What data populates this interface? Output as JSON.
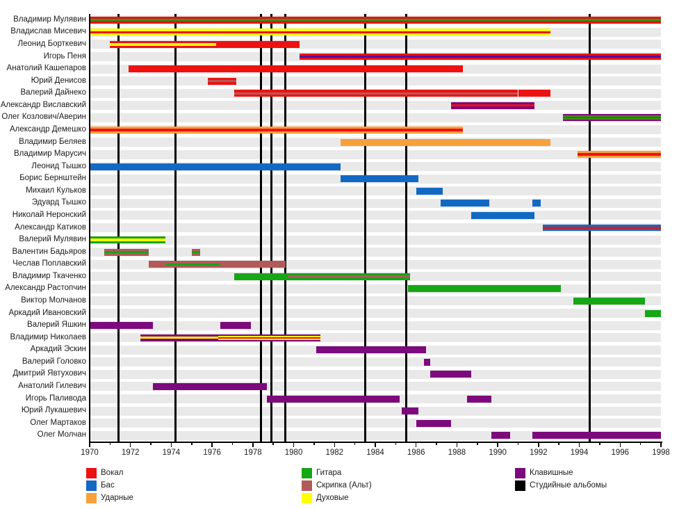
{
  "chart_data": {
    "type": "gantt-timeline",
    "description": "Band members timeline with instrument roles and studio album markers",
    "x_axis": {
      "min": 1970,
      "max": 1998,
      "major_tick_step": 2,
      "tick_labels": [
        "1970",
        "1972",
        "1974",
        "1976",
        "1978",
        "1980",
        "1982",
        "1984",
        "1986",
        "1988",
        "1990",
        "1992",
        "1994",
        "1996",
        "1998"
      ]
    },
    "album_years": [
      1971.4,
      1974.2,
      1978.4,
      1978.9,
      1979.6,
      1983.5,
      1985.5,
      1994.5
    ],
    "members": [
      {
        "name": "Владимир Мулявин",
        "segments": [
          {
            "start": 1970,
            "end": 1998,
            "layers": [
              "vocal",
              "guitar",
              "vocal"
            ]
          }
        ]
      },
      {
        "name": "Владислав Мисевич",
        "segments": [
          {
            "start": 1970,
            "end": 1992.6,
            "layers": [
              "wind",
              "vocal",
              "wind"
            ]
          }
        ]
      },
      {
        "name": "Леонид Борткевич",
        "segments": [
          {
            "start": 1971,
            "end": 1976.2,
            "layers": [
              "vocal",
              "wind",
              "vocal"
            ]
          },
          {
            "start": 1976.2,
            "end": 1980.3,
            "layers": [
              "vocal"
            ]
          }
        ]
      },
      {
        "name": "Игорь Пеня",
        "segments": [
          {
            "start": 1980.3,
            "end": 1998,
            "layers": [
              "vocal",
              "keys_dark",
              "vocal"
            ]
          }
        ]
      },
      {
        "name": "Анатолий Кашепаров",
        "segments": [
          {
            "start": 1971.9,
            "end": 1988.3,
            "layers": [
              "vocal"
            ]
          }
        ]
      },
      {
        "name": "Юрий Денисов",
        "segments": [
          {
            "start": 1975.8,
            "end": 1977.2,
            "layers": [
              "vocal",
              "strings",
              "vocal"
            ]
          }
        ]
      },
      {
        "name": "Валерий Дайнеко",
        "segments": [
          {
            "start": 1977.1,
            "end": 1991,
            "layers": [
              "vocal",
              "strings",
              "vocal"
            ]
          },
          {
            "start": 1991,
            "end": 1992.6,
            "layers": [
              "vocal"
            ]
          }
        ]
      },
      {
        "name": "Александр Виславский",
        "segments": [
          {
            "start": 1987.7,
            "end": 1991.8,
            "layers": [
              "keys",
              "vocal",
              "keys"
            ]
          }
        ]
      },
      {
        "name": "Олег Козлович/Аверин",
        "segments": [
          {
            "start": 1993.2,
            "end": 1998,
            "layers": [
              "keys",
              "guitar",
              "vocal",
              "guitar",
              "keys"
            ]
          }
        ]
      },
      {
        "name": "Александр Демешко",
        "segments": [
          {
            "start": 1970,
            "end": 1988.3,
            "layers": [
              "drums",
              "vocal",
              "drums"
            ]
          }
        ]
      },
      {
        "name": "Владимир Беляев",
        "segments": [
          {
            "start": 1982.3,
            "end": 1992.6,
            "layers": [
              "drums"
            ]
          }
        ]
      },
      {
        "name": "Владимир Марусич",
        "segments": [
          {
            "start": 1993.9,
            "end": 1998,
            "layers": [
              "drums",
              "vocal",
              "drums"
            ]
          }
        ]
      },
      {
        "name": "Леонид Тышко",
        "segments": [
          {
            "start": 1970,
            "end": 1982.3,
            "layers": [
              "bass"
            ]
          }
        ]
      },
      {
        "name": "Борис Бернштейн",
        "segments": [
          {
            "start": 1982.3,
            "end": 1986.1,
            "layers": [
              "bass"
            ]
          }
        ]
      },
      {
        "name": "Михаил Кульков",
        "segments": [
          {
            "start": 1986,
            "end": 1987.3,
            "layers": [
              "bass"
            ]
          }
        ]
      },
      {
        "name": "Эдуард Тышко",
        "segments": [
          {
            "start": 1987.2,
            "end": 1989.6,
            "layers": [
              "bass"
            ]
          },
          {
            "start": 1991.7,
            "end": 1992.1,
            "layers": [
              "bass"
            ]
          }
        ]
      },
      {
        "name": "Николай Неронский",
        "segments": [
          {
            "start": 1988.7,
            "end": 1991.8,
            "layers": [
              "bass"
            ]
          }
        ]
      },
      {
        "name": "Александр Катиков",
        "segments": [
          {
            "start": 1992.2,
            "end": 1998,
            "layers": [
              "bass",
              "vocal",
              "bass"
            ]
          }
        ]
      },
      {
        "name": "Валерий Мулявин",
        "segments": [
          {
            "start": 1970,
            "end": 1973.7,
            "layers": [
              "guitar",
              "wind",
              "guitar"
            ]
          }
        ]
      },
      {
        "name": "Валентин Бадьяров",
        "segments": [
          {
            "start": 1970.7,
            "end": 1972.9,
            "layers": [
              "strings",
              "guitar",
              "strings"
            ]
          },
          {
            "start": 1975,
            "end": 1975.4,
            "layers": [
              "strings",
              "guitar",
              "strings"
            ]
          }
        ]
      },
      {
        "name": "Чеслав Поплавский",
        "segments": [
          {
            "start": 1972.9,
            "end": 1973.75,
            "layers": [
              "strings"
            ]
          },
          {
            "start": 1973.75,
            "end": 1976.4,
            "layers": [
              "strings",
              "guitar",
              "strings"
            ]
          },
          {
            "start": 1976.4,
            "end": 1979.6,
            "layers": [
              "strings"
            ]
          }
        ]
      },
      {
        "name": "Владимир Ткаченко",
        "segments": [
          {
            "start": 1977.1,
            "end": 1979.7,
            "layers": [
              "guitar"
            ]
          },
          {
            "start": 1979.7,
            "end": 1985.7,
            "layers": [
              "guitar",
              "strings",
              "guitar"
            ]
          }
        ]
      },
      {
        "name": "Александр Растопчин",
        "segments": [
          {
            "start": 1985.6,
            "end": 1993.1,
            "layers": [
              "guitar"
            ]
          }
        ]
      },
      {
        "name": "Виктор Молчанов",
        "segments": [
          {
            "start": 1993.7,
            "end": 1997.2,
            "layers": [
              "guitar"
            ]
          }
        ]
      },
      {
        "name": "Аркадий Ивановский",
        "segments": [
          {
            "start": 1997.2,
            "end": 1998,
            "layers": [
              "guitar"
            ]
          }
        ]
      },
      {
        "name": "Валерий Яшкин",
        "segments": [
          {
            "start": 1970,
            "end": 1973.1,
            "layers": [
              "keys"
            ]
          },
          {
            "start": 1976.4,
            "end": 1977.9,
            "layers": [
              "keys"
            ]
          }
        ]
      },
      {
        "name": "Владимир Николаев",
        "segments": [
          {
            "start": 1972.5,
            "end": 1976.3,
            "layers": [
              "keys",
              "wind",
              "keys"
            ]
          },
          {
            "start": 1976.3,
            "end": 1981.3,
            "layers": [
              "keys",
              "wind",
              "vocal",
              "wind",
              "keys"
            ]
          }
        ]
      },
      {
        "name": "Аркадий Эскин",
        "segments": [
          {
            "start": 1981.1,
            "end": 1986.5,
            "layers": [
              "keys"
            ]
          }
        ]
      },
      {
        "name": "Валерий Головко",
        "segments": [
          {
            "start": 1986.4,
            "end": 1986.7,
            "layers": [
              "keys"
            ]
          }
        ]
      },
      {
        "name": "Дмитрий Явтухович",
        "segments": [
          {
            "start": 1986.7,
            "end": 1988.7,
            "layers": [
              "keys"
            ]
          }
        ]
      },
      {
        "name": "Анатолий Гилевич",
        "segments": [
          {
            "start": 1973.1,
            "end": 1978.7,
            "layers": [
              "keys"
            ]
          }
        ]
      },
      {
        "name": "Игорь Паливода",
        "segments": [
          {
            "start": 1978.7,
            "end": 1985.2,
            "layers": [
              "keys"
            ]
          },
          {
            "start": 1988.5,
            "end": 1989.7,
            "layers": [
              "keys"
            ]
          }
        ]
      },
      {
        "name": "Юрий Лукашевич",
        "segments": [
          {
            "start": 1985.3,
            "end": 1986.1,
            "layers": [
              "keys"
            ]
          }
        ]
      },
      {
        "name": "Олег Мартаков",
        "segments": [
          {
            "start": 1986,
            "end": 1987.7,
            "layers": [
              "keys"
            ]
          }
        ]
      },
      {
        "name": "Олег Молчан",
        "segments": [
          {
            "start": 1989.7,
            "end": 1990.6,
            "layers": [
              "keys"
            ]
          },
          {
            "start": 1991.7,
            "end": 1998,
            "layers": [
              "keys"
            ]
          }
        ]
      }
    ],
    "legend_columns": [
      [
        {
          "key": "vocal",
          "label": "Вокал"
        },
        {
          "key": "bass",
          "label": "Бас"
        },
        {
          "key": "drums",
          "label": "Ударные"
        }
      ],
      [
        {
          "key": "guitar",
          "label": "Гитара"
        },
        {
          "key": "strings",
          "label": "Скрипка (Альт)"
        },
        {
          "key": "wind",
          "label": "Духовые"
        }
      ],
      [
        {
          "key": "keys",
          "label": "Клавишные"
        },
        {
          "key": "albums",
          "label": "Студийные альбомы"
        }
      ]
    ]
  },
  "colors": {
    "vocal": "#ee1111",
    "bass": "#1269c4",
    "drums": "#f7a13b",
    "guitar": "#16a616",
    "strings": "#b25959",
    "wind": "#ffff00",
    "keys": "#7c0a7c",
    "keys_dark": "#4812a8",
    "albums": "#000000",
    "row_band": "#e9e9e9",
    "axis": "#000000",
    "text": "#1a1a1a"
  }
}
